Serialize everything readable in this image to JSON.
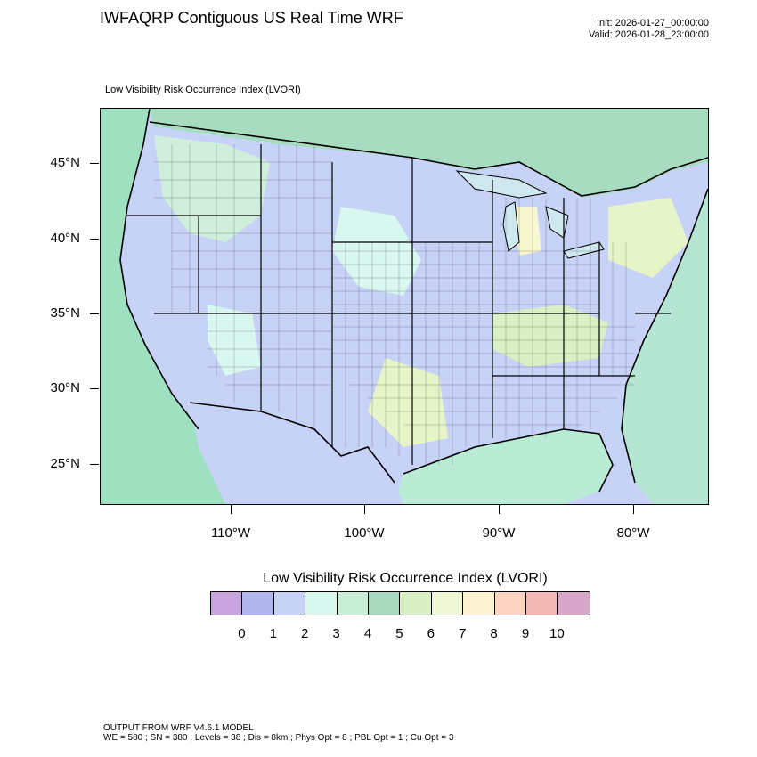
{
  "header": {
    "title": "IWFAQRP Contiguous US Real Time WRF",
    "init": "Init: 2026-01-27_00:00:00",
    "valid": "Valid: 2026-01-28_23:00:00"
  },
  "map": {
    "subtitle": "Low Visibility Risk Occurrence Index   (LVORI)",
    "lat_labels": [
      "45°N",
      "40°N",
      "35°N",
      "30°N",
      "25°N"
    ],
    "lon_labels": [
      "110°W",
      "100°W",
      "90°W",
      "80°W"
    ],
    "colors": {
      "ocean": "#9ee0c0",
      "base": "#c7d2f7",
      "cyan": "#d7f7ef",
      "green": "#c8eed6",
      "lightgreen": "#e6f4c8",
      "yellow": "#f7f7d0"
    }
  },
  "legend": {
    "title": "Low Visibility Risk Occurrence Index  (LVORI)",
    "tick_labels": [
      "0",
      "1",
      "2",
      "3",
      "4",
      "5",
      "6",
      "7",
      "8",
      "9",
      "10"
    ],
    "colors": [
      "#c9a5df",
      "#b0b5ec",
      "#c7d2f7",
      "#d7f7ef",
      "#c8eed6",
      "#a8d8be",
      "#d9f0c4",
      "#eef8d4",
      "#fdf3d3",
      "#fcd5c2",
      "#f2b8b5",
      "#d8a6c9"
    ]
  },
  "footer": {
    "line1": "OUTPUT FROM WRF V4.6.1 MODEL",
    "line2": "WE = 580 ; SN = 380 ; Levels = 38 ; Dis = 8km ; Phys Opt = 8 ; PBL Opt = 1 ; Cu Opt = 3"
  }
}
